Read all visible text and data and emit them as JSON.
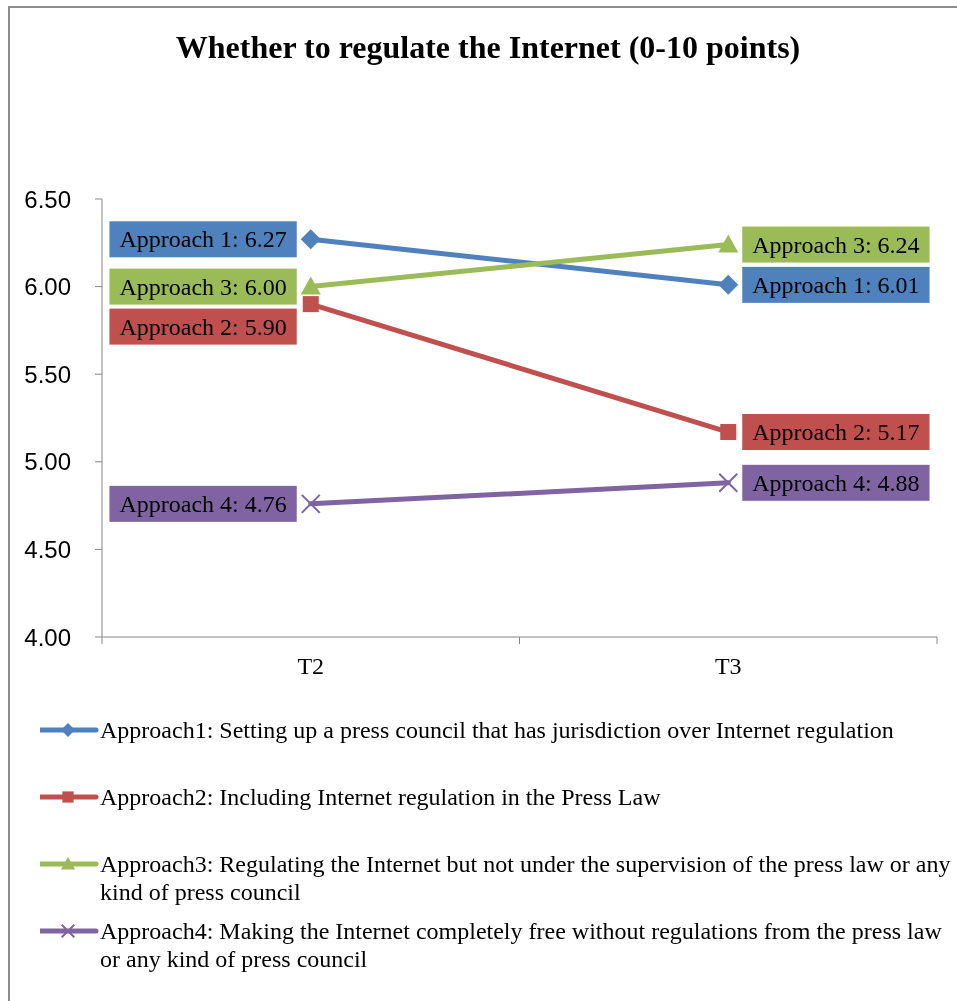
{
  "chart_data": {
    "type": "line",
    "title": "Whether to regulate the Internet (0-10 points)",
    "categories": [
      "T2",
      "T3"
    ],
    "series": [
      {
        "name": "Approach1: Setting up a press council that has jurisdiction over Internet regulation",
        "color": "#4f81bd",
        "marker": "diamond",
        "values": [
          6.27,
          6.01
        ],
        "value_labels": [
          "Approach 1: 6.27",
          "Approach 1: 6.01"
        ]
      },
      {
        "name": "Approach2: Including Internet regulation in the Press Law",
        "color": "#c0504d",
        "marker": "square",
        "values": [
          5.9,
          5.17
        ],
        "value_labels": [
          "Approach 2: 5.90",
          "Approach 2: 5.17"
        ]
      },
      {
        "name": "Approach3: Regulating the Internet but not under the supervision of the press law or any kind of press council",
        "color": "#9bbb59",
        "marker": "triangle",
        "values": [
          6.0,
          6.24
        ],
        "value_labels": [
          "Approach 3: 6.00",
          "Approach 3: 6.24"
        ]
      },
      {
        "name": "Approach4: Making the Internet completely free without regulations from the press law or any kind of press council",
        "color": "#8064a2",
        "marker": "cross",
        "values": [
          4.76,
          4.88
        ],
        "value_labels": [
          "Approach 4: 4.76",
          "Approach 4: 4.88"
        ]
      }
    ],
    "ylim": [
      4,
      6.5
    ],
    "yticks": [
      {
        "value": 4,
        "label": "4.00"
      },
      {
        "value": 4.5,
        "label": "4.50"
      },
      {
        "value": 5,
        "label": "5.00"
      },
      {
        "value": 5.5,
        "label": "5.50"
      },
      {
        "value": 6,
        "label": "6.00"
      },
      {
        "value": 6.5,
        "label": "6.50"
      }
    ],
    "legend": "bottom"
  }
}
